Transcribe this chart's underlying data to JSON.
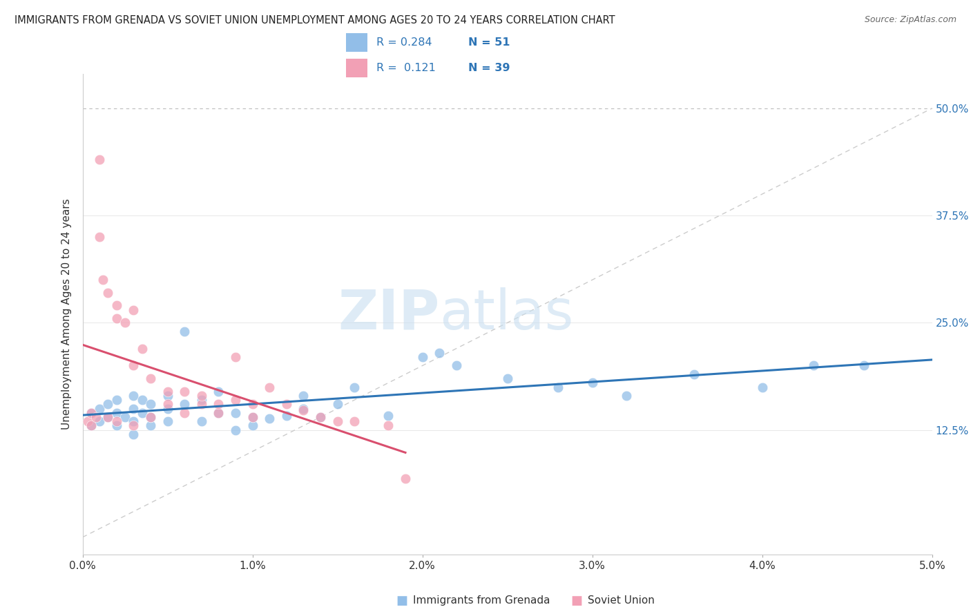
{
  "title": "IMMIGRANTS FROM GRENADA VS SOVIET UNION UNEMPLOYMENT AMONG AGES 20 TO 24 YEARS CORRELATION CHART",
  "source": "Source: ZipAtlas.com",
  "ylabel": "Unemployment Among Ages 20 to 24 years",
  "legend_labels": [
    "Immigrants from Grenada",
    "Soviet Union"
  ],
  "legend_r": [
    "R = 0.284",
    "R =  0.121"
  ],
  "legend_n": [
    "N = 51",
    "N = 39"
  ],
  "color_blue": "#92BEE8",
  "color_pink": "#F2A0B5",
  "line_blue": "#2E75B6",
  "line_pink": "#D94F6E",
  "watermark_zip": "ZIP",
  "watermark_atlas": "atlas",
  "xlim": [
    0.0,
    0.05
  ],
  "ylim": [
    -0.02,
    0.54
  ],
  "yticks": [
    0.0,
    0.125,
    0.25,
    0.375,
    0.5
  ],
  "ytick_labels": [
    "",
    "12.5%",
    "25.0%",
    "37.5%",
    "50.0%"
  ],
  "xticks": [
    0.0,
    0.01,
    0.02,
    0.03,
    0.04,
    0.05
  ],
  "xtick_labels": [
    "0.0%",
    "1.0%",
    "2.0%",
    "3.0%",
    "4.0%",
    "5.0%"
  ],
  "grenada_x": [
    0.0005,
    0.0005,
    0.001,
    0.001,
    0.0015,
    0.0015,
    0.002,
    0.002,
    0.002,
    0.0025,
    0.003,
    0.003,
    0.003,
    0.003,
    0.0035,
    0.0035,
    0.004,
    0.004,
    0.004,
    0.005,
    0.005,
    0.005,
    0.006,
    0.006,
    0.007,
    0.007,
    0.008,
    0.008,
    0.009,
    0.009,
    0.01,
    0.01,
    0.011,
    0.012,
    0.013,
    0.013,
    0.014,
    0.015,
    0.016,
    0.018,
    0.02,
    0.021,
    0.022,
    0.025,
    0.028,
    0.03,
    0.032,
    0.036,
    0.04,
    0.043,
    0.046
  ],
  "grenada_y": [
    0.13,
    0.145,
    0.135,
    0.15,
    0.14,
    0.155,
    0.13,
    0.145,
    0.16,
    0.14,
    0.12,
    0.135,
    0.15,
    0.165,
    0.145,
    0.16,
    0.13,
    0.14,
    0.155,
    0.135,
    0.15,
    0.165,
    0.24,
    0.155,
    0.16,
    0.135,
    0.145,
    0.17,
    0.125,
    0.145,
    0.13,
    0.14,
    0.138,
    0.142,
    0.15,
    0.165,
    0.14,
    0.155,
    0.175,
    0.142,
    0.21,
    0.215,
    0.2,
    0.185,
    0.175,
    0.18,
    0.165,
    0.19,
    0.175,
    0.2,
    0.2
  ],
  "soviet_x": [
    0.0003,
    0.0005,
    0.0005,
    0.0008,
    0.001,
    0.001,
    0.0012,
    0.0015,
    0.0015,
    0.002,
    0.002,
    0.002,
    0.0025,
    0.003,
    0.003,
    0.003,
    0.0035,
    0.004,
    0.004,
    0.005,
    0.005,
    0.006,
    0.006,
    0.007,
    0.007,
    0.008,
    0.008,
    0.009,
    0.009,
    0.01,
    0.01,
    0.011,
    0.012,
    0.013,
    0.014,
    0.015,
    0.016,
    0.018,
    0.019
  ],
  "soviet_y": [
    0.135,
    0.13,
    0.145,
    0.14,
    0.44,
    0.35,
    0.3,
    0.285,
    0.14,
    0.27,
    0.255,
    0.135,
    0.25,
    0.265,
    0.13,
    0.2,
    0.22,
    0.185,
    0.14,
    0.17,
    0.155,
    0.17,
    0.145,
    0.155,
    0.165,
    0.145,
    0.155,
    0.21,
    0.16,
    0.155,
    0.14,
    0.175,
    0.155,
    0.148,
    0.14,
    0.135,
    0.135,
    0.13,
    0.068
  ],
  "diag_line_color": "#cccccc",
  "grid_color": "#e8e8e8"
}
